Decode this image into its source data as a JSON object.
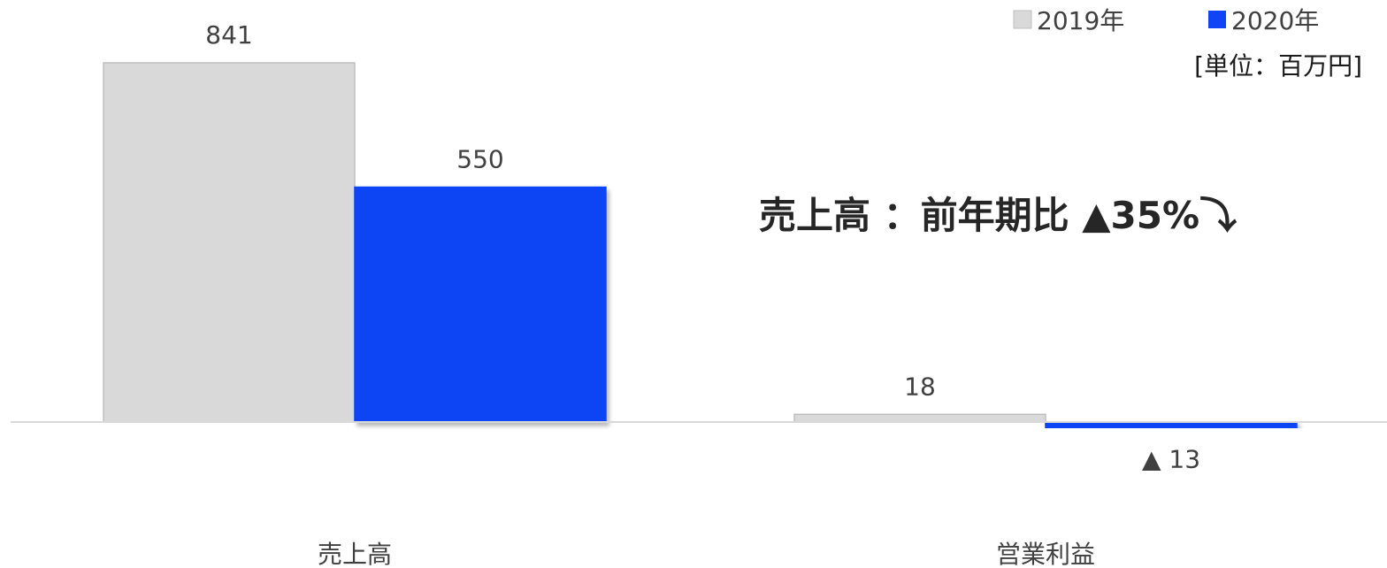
{
  "chart_data": {
    "type": "bar",
    "categories": [
      "売上高",
      "営業利益"
    ],
    "series": [
      {
        "name": "2019年",
        "values": [
          841,
          18
        ],
        "labels": [
          "841",
          "18"
        ],
        "color": "#d9d9d9",
        "border": "#bfbfbf"
      },
      {
        "name": "2020年",
        "values": [
          550,
          -13
        ],
        "labels": [
          "550",
          "▲ 13"
        ],
        "color": "#1144f5",
        "border": "#1144f5"
      }
    ],
    "ylim": [
      -13,
      841
    ],
    "grid": false,
    "legend": "top-right"
  },
  "unit_label": "[単位：百万円]",
  "headline": "売上高 ：前年期比 ▲35%⤵"
}
